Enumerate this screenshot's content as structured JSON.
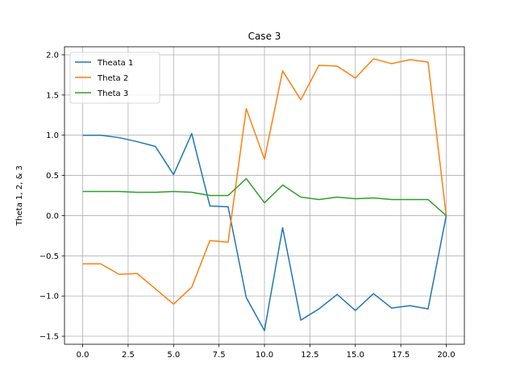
{
  "chart_data": {
    "type": "line",
    "title": "Case 3",
    "xlabel": "",
    "ylabel": "Theta 1, 2, & 3",
    "xlim": [
      -1.0,
      21.0
    ],
    "ylim": [
      -1.6,
      2.1
    ],
    "xticks": [
      0.0,
      2.5,
      5.0,
      7.5,
      10.0,
      12.5,
      15.0,
      17.5,
      20.0
    ],
    "xtick_labels": [
      "0.0",
      "2.5",
      "5.0",
      "7.5",
      "10.0",
      "12.5",
      "15.0",
      "17.5",
      "20.0"
    ],
    "yticks": [
      -1.5,
      -1.0,
      -0.5,
      0.0,
      0.5,
      1.0,
      1.5,
      2.0
    ],
    "ytick_labels": [
      "−1.5",
      "−1.0",
      "−0.5",
      "0.0",
      "0.5",
      "1.0",
      "1.5",
      "2.0"
    ],
    "grid": true,
    "legend_position": "top-left",
    "x": [
      0,
      1,
      2,
      3,
      4,
      5,
      6,
      7,
      8,
      9,
      10,
      11,
      12,
      13,
      14,
      15,
      16,
      17,
      18,
      19,
      20
    ],
    "series": [
      {
        "name": "Theata 1",
        "color": "#1f77b4",
        "values": [
          1.0,
          1.0,
          0.97,
          0.92,
          0.86,
          0.51,
          1.02,
          0.12,
          0.11,
          -1.02,
          -1.43,
          -0.15,
          -1.3,
          -1.16,
          -0.98,
          -1.18,
          -0.97,
          -1.15,
          -1.12,
          -1.16,
          0.0
        ]
      },
      {
        "name": "Theta 2",
        "color": "#ff7f0e",
        "values": [
          -0.6,
          -0.6,
          -0.73,
          -0.72,
          -0.91,
          -1.1,
          -0.89,
          -0.31,
          -0.33,
          1.33,
          0.7,
          1.8,
          1.44,
          1.87,
          1.86,
          1.71,
          1.95,
          1.89,
          1.94,
          1.91,
          0.0
        ]
      },
      {
        "name": "Theta 3",
        "color": "#2ca02c",
        "values": [
          0.3,
          0.3,
          0.3,
          0.29,
          0.29,
          0.3,
          0.29,
          0.25,
          0.25,
          0.46,
          0.16,
          0.38,
          0.23,
          0.2,
          0.23,
          0.21,
          0.22,
          0.2,
          0.2,
          0.2,
          0.0
        ]
      }
    ]
  }
}
